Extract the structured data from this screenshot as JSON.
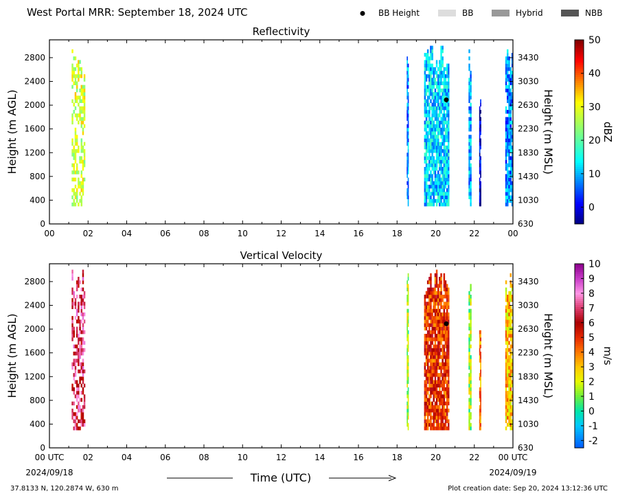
{
  "title": "West Portal MRR:  September 18, 2024 UTC",
  "legend": {
    "items": [
      {
        "label": "BB Height",
        "kind": "marker",
        "color": "#000000"
      },
      {
        "label": "BB",
        "kind": "patch",
        "color": "#dddddd"
      },
      {
        "label": "Hybrid",
        "kind": "patch",
        "color": "#999999"
      },
      {
        "label": "NBB",
        "kind": "patch",
        "color": "#555555"
      }
    ]
  },
  "colors": {
    "bb_marker": "#000000",
    "frame": "#000000"
  },
  "footer": {
    "location": "37.8133 N, 120.2874 W, 630 m",
    "created": "Plot creation date: Sep 20, 2024 13:12:36 UTC",
    "xlabel": "Time (UTC)",
    "start_date": "2024/09/18",
    "end_date": "2024/09/19"
  },
  "chart_data": [
    {
      "type": "heatmap",
      "title": "Reflectivity",
      "xlabel": "",
      "ylabel": "Height (m AGL)",
      "ylabel_right": "Height (m MSL)",
      "xlim": [
        0,
        24
      ],
      "ylim": [
        0,
        3100
      ],
      "x_ticks": [
        "00",
        "02",
        "04",
        "06",
        "08",
        "10",
        "12",
        "14",
        "16",
        "18",
        "20",
        "22",
        "00"
      ],
      "y_ticks": [
        0,
        400,
        800,
        1200,
        1600,
        2000,
        2400,
        2800
      ],
      "y_ticks_right": [
        630,
        1030,
        1430,
        1830,
        2230,
        2630,
        3030,
        3430
      ],
      "colorbar": {
        "label": "dBZ",
        "min": -5,
        "max": 50,
        "ticks": [
          0,
          10,
          20,
          30,
          40,
          50
        ],
        "colormap": "jet"
      },
      "bright_band_height": {
        "time": 20.55,
        "height": 2090
      },
      "precip_periods": [
        {
          "start": 1.15,
          "end": 1.85,
          "height_top": 3000,
          "typical_value": 28
        },
        {
          "start": 18.5,
          "end": 18.6,
          "height_top": 3000,
          "typical_value": 8
        },
        {
          "start": 19.4,
          "end": 20.7,
          "height_top": 3000,
          "typical_value": 12
        },
        {
          "start": 21.7,
          "end": 21.85,
          "height_top": 3000,
          "typical_value": 10
        },
        {
          "start": 22.25,
          "end": 22.35,
          "height_top": 2200,
          "typical_value": 0
        },
        {
          "start": 23.6,
          "end": 24.0,
          "height_top": 3000,
          "typical_value": 8
        }
      ]
    },
    {
      "type": "heatmap",
      "title": "Vertical Velocity",
      "xlabel": "Time (UTC)",
      "ylabel": "Height (m AGL)",
      "ylabel_right": "Height (m MSL)",
      "xlim": [
        0,
        24
      ],
      "ylim": [
        0,
        3100
      ],
      "x_ticks": [
        "00 UTC",
        "02",
        "04",
        "06",
        "08",
        "10",
        "12",
        "14",
        "16",
        "18",
        "20",
        "22",
        "00 UTC"
      ],
      "y_ticks": [
        0,
        400,
        800,
        1200,
        1600,
        2000,
        2400,
        2800
      ],
      "y_ticks_right": [
        630,
        1030,
        1430,
        1830,
        2230,
        2630,
        3030,
        3430
      ],
      "colorbar": {
        "label": "m/s",
        "min": -2.5,
        "max": 10,
        "ticks": [
          -2,
          -1,
          0,
          1,
          2,
          3,
          4,
          5,
          6,
          7,
          8,
          9,
          10
        ]
      },
      "bright_band_height": {
        "time": 20.55,
        "height": 2090
      },
      "precip_periods": [
        {
          "start": 1.15,
          "end": 1.85,
          "height_top": 3000,
          "typical_value": 7
        },
        {
          "start": 18.5,
          "end": 18.6,
          "height_top": 3000,
          "typical_value": 1.5
        },
        {
          "start": 19.4,
          "end": 20.7,
          "height_top": 3000,
          "typical_value": 5
        },
        {
          "start": 21.7,
          "end": 21.85,
          "height_top": 3000,
          "typical_value": 1.5
        },
        {
          "start": 22.25,
          "end": 22.35,
          "height_top": 2200,
          "typical_value": 4
        },
        {
          "start": 23.6,
          "end": 24.0,
          "height_top": 3000,
          "typical_value": 3
        }
      ]
    }
  ]
}
